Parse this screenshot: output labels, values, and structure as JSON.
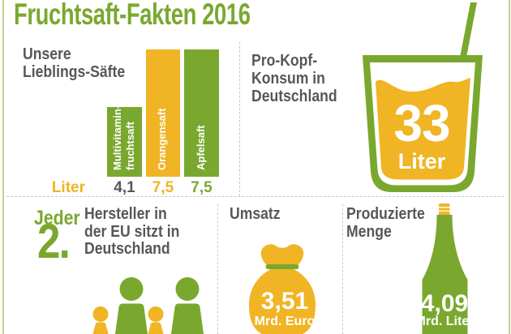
{
  "title": "Fruchtsaft-Fakten 2016",
  "colors": {
    "green": "#7aa82f",
    "yellow": "#f0b424",
    "gray_text": "#575756",
    "light_green_border": "#bdd38d",
    "dash_gray": "#c8c8c8"
  },
  "favorites": {
    "heading": "Unsere\nLieblings-Säfte",
    "unit_label": "Liter"
  },
  "chart_data": {
    "type": "bar",
    "title": "Unsere Lieblings-Säfte",
    "categories": [
      "Multivitamin-\nfruchtsaft",
      "Orangensaft",
      "Apfelsaft"
    ],
    "values": [
      4.1,
      7.5,
      7.5
    ],
    "value_labels": [
      "4,1",
      "7,5",
      "7,5"
    ],
    "xlabel": "",
    "ylabel": "Liter",
    "ylim": [
      0,
      7.5
    ],
    "grid": false,
    "legend": false,
    "bar_colors": [
      "#7aa82f",
      "#f0b424",
      "#7aa82f"
    ],
    "value_label_colors": [
      "#575756",
      "#f0b424",
      "#7aa82f"
    ]
  },
  "per_capita": {
    "heading": "Pro-Kopf-\nKonsum in\nDeutschland",
    "value": "33",
    "unit": "Liter"
  },
  "manufacturers": {
    "prefix": "Jeder",
    "number": "2.",
    "text": "Hersteller in\nder EU sitzt in\nDeutschland"
  },
  "revenue": {
    "heading": "Umsatz",
    "value": "3,51",
    "unit": "Mrd. Euro"
  },
  "production": {
    "heading": "Produzierte\nMenge",
    "value": "4,09",
    "unit": "Mrd. Liter"
  }
}
